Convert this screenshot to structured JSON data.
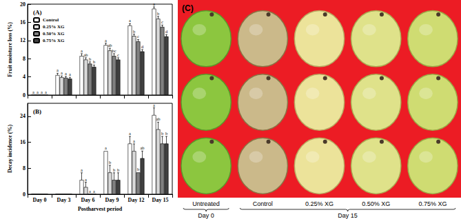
{
  "chart_data": [
    {
      "type": "bar",
      "title": "(A)",
      "ylabel": "Fruit moisture loss (%)",
      "categories": [
        "Day 0",
        "Day 3",
        "Day 6",
        "Day 9",
        "Day 12",
        "Day 15"
      ],
      "ylim": [
        0,
        20
      ],
      "yticks": [
        0,
        4,
        8,
        12,
        16,
        20
      ],
      "grid": false,
      "legend": "upper left",
      "tick_labels": "y",
      "series": [
        {
          "name": "Control",
          "color": "#ffffff",
          "values": [
            0,
            4.4,
            8.6,
            11.0,
            15.3,
            19.0
          ],
          "errors": [
            0,
            0.4,
            0.5,
            0.4,
            0.4,
            0.4
          ],
          "annotations": [
            "a",
            "a",
            "a",
            "a",
            "a",
            "a"
          ]
        },
        {
          "name": "0.25% XG",
          "color": "#d9d9d9",
          "values": [
            0,
            3.9,
            7.8,
            9.8,
            13.0,
            16.8
          ],
          "errors": [
            0,
            0.3,
            0.4,
            0.5,
            0.4,
            0.5
          ],
          "annotations": [
            "a",
            "a",
            "ab",
            "ab",
            "b",
            "b"
          ]
        },
        {
          "name": "0.50% XG",
          "color": "#808080",
          "values": [
            0,
            3.8,
            6.9,
            8.6,
            11.8,
            15.0
          ],
          "errors": [
            0,
            0.3,
            0.4,
            0.5,
            0.4,
            0.4
          ],
          "annotations": [
            "a",
            "a",
            "b",
            "bc",
            "c",
            "c"
          ]
        },
        {
          "name": "0.75% XG",
          "color": "#404040",
          "values": [
            0,
            3.6,
            6.2,
            7.8,
            9.6,
            12.9
          ],
          "errors": [
            0,
            0.3,
            0.4,
            0.4,
            0.4,
            0.4
          ],
          "annotations": [
            "a",
            "a",
            "b",
            "c",
            "d",
            "d"
          ]
        }
      ]
    },
    {
      "type": "bar",
      "title": "(B)",
      "ylabel": "Decay incidence (%)",
      "xlabel": "Postharvest period",
      "categories": [
        "Day 0",
        "Day 3",
        "Day 6",
        "Day 9",
        "Day 12",
        "Day 15"
      ],
      "ylim": [
        0,
        28
      ],
      "yticks": [
        0,
        8,
        16,
        24
      ],
      "grid": false,
      "series": [
        {
          "name": "Control",
          "color": "#ffffff",
          "values": [
            0,
            0,
            4.4,
            13.3,
            15.6,
            24.4
          ],
          "errors": [
            0,
            0,
            2.2,
            0,
            2.2,
            2.2
          ],
          "annotations": [
            null,
            null,
            "a",
            "a",
            "a",
            "a"
          ]
        },
        {
          "name": "0.25% XG",
          "color": "#d9d9d9",
          "values": [
            0,
            0,
            2.2,
            6.7,
            13.3,
            20.0
          ],
          "errors": [
            0,
            0,
            1.5,
            2.2,
            2.2,
            2.2
          ],
          "annotations": [
            null,
            null,
            "a",
            "b",
            "a",
            "ab"
          ]
        },
        {
          "name": "0.50% XG",
          "color": "#808080",
          "values": [
            0,
            0,
            0,
            4.4,
            6.7,
            15.6
          ],
          "errors": [
            0,
            0,
            0,
            2.2,
            0,
            2.2
          ],
          "annotations": [
            null,
            null,
            "a",
            "b",
            "b",
            "b"
          ]
        },
        {
          "name": "0.75% XG",
          "color": "#404040",
          "values": [
            0,
            0,
            0,
            4.4,
            11.1,
            15.6
          ],
          "errors": [
            0,
            0,
            0,
            2.2,
            2.2,
            2.2
          ],
          "annotations": [
            null,
            null,
            "a",
            "b",
            "ab",
            "b"
          ]
        }
      ]
    }
  ],
  "photo_panel": {
    "title": "(C)",
    "rows": 3,
    "groups": [
      {
        "label": "Day 0",
        "columns": [
          "Untreated"
        ]
      },
      {
        "label": "Day 15",
        "columns": [
          "Control",
          "0.25% XG",
          "0.50% XG",
          "0.75% XG"
        ]
      }
    ]
  }
}
